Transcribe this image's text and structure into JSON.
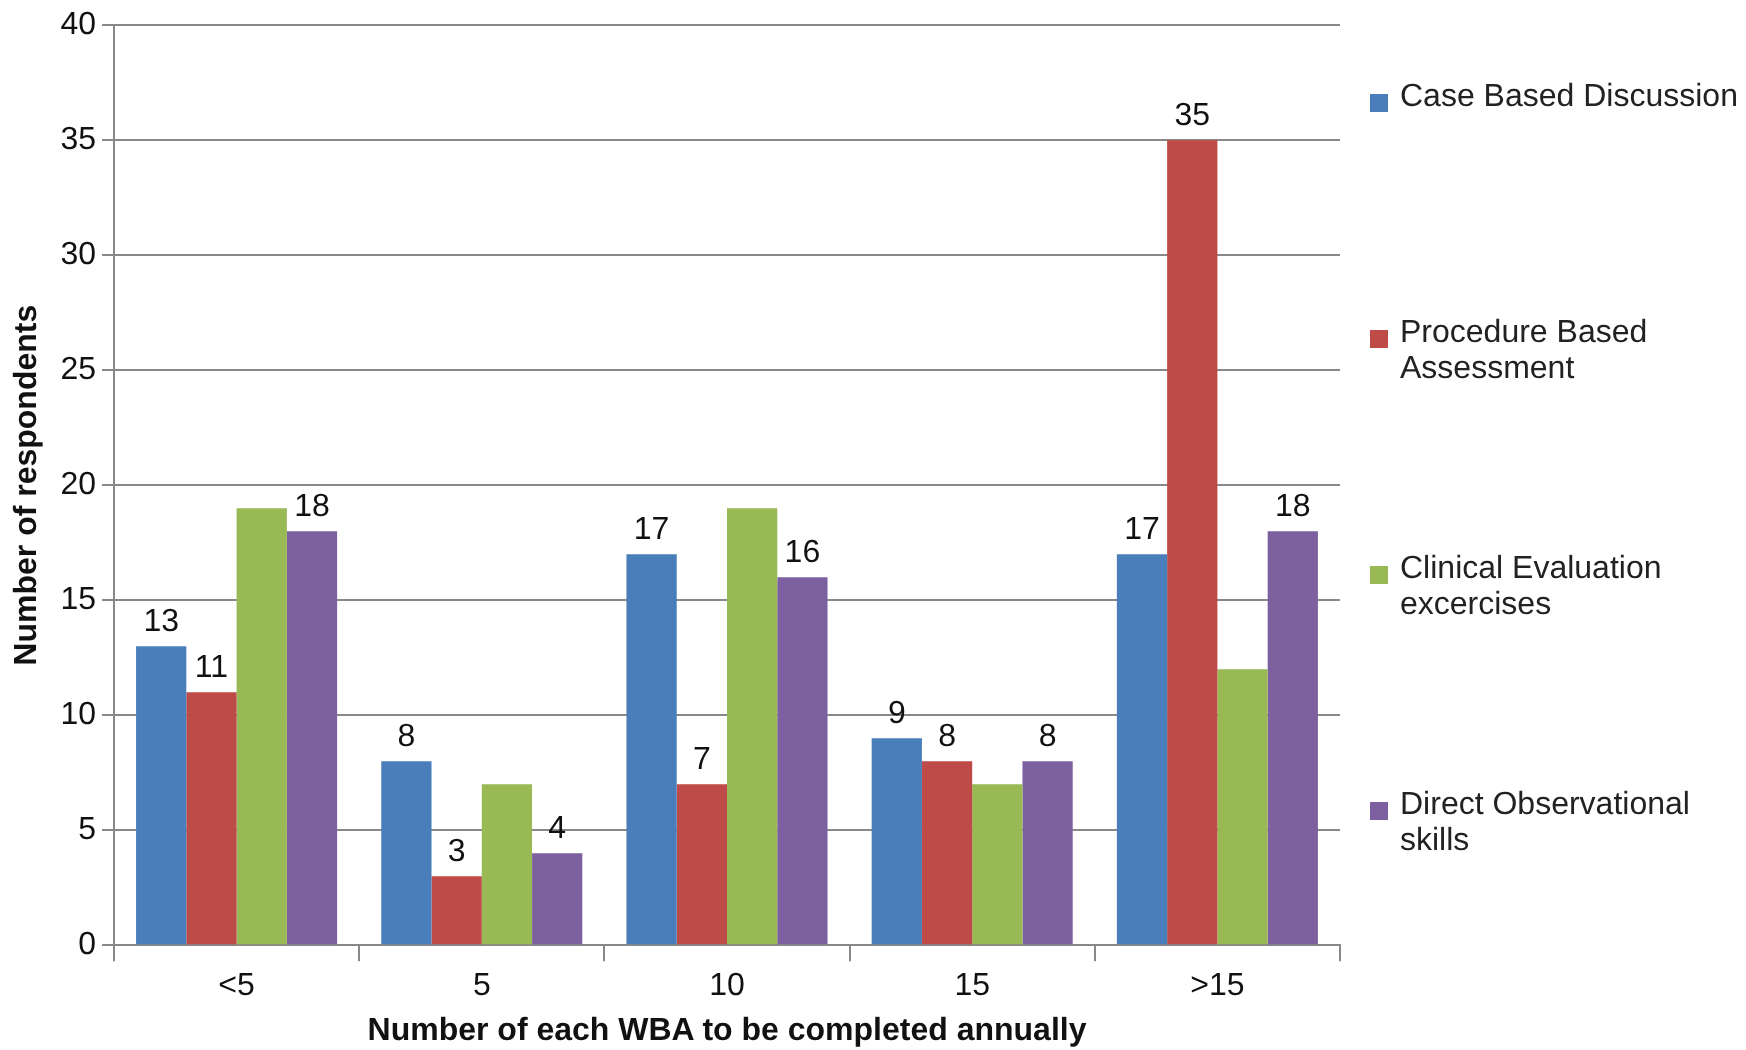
{
  "chart_data": {
    "type": "bar",
    "xlabel": "Number of each WBA to be completed annually",
    "ylabel": "Number of respondents",
    "categories": [
      "<5",
      "5",
      "10",
      "15",
      ">15"
    ],
    "series": [
      {
        "name": "Case Based Discussion",
        "color": "#4a7ebb",
        "values": [
          13,
          8,
          17,
          9,
          17
        ],
        "value_labels": [
          "13",
          "8",
          "17",
          "9",
          "17"
        ]
      },
      {
        "name": "Procedure Based Assessment",
        "color": "#be4b48",
        "values": [
          11,
          3,
          7,
          8,
          35
        ],
        "value_labels": [
          "11",
          "3",
          "7",
          "8",
          "35"
        ]
      },
      {
        "name": "Clinical Evaluation excercises",
        "color": "#98b954",
        "values": [
          19,
          7,
          19,
          7,
          12
        ]
      },
      {
        "name": "Direct Observational skills",
        "color": "#7d60a0",
        "values": [
          18,
          4,
          16,
          8,
          18
        ],
        "value_labels": [
          "18",
          "4",
          "16",
          "8",
          "18"
        ]
      }
    ],
    "ylim": [
      0,
      40
    ],
    "yticks": [
      0,
      5,
      10,
      15,
      20,
      25,
      30,
      35,
      40
    ],
    "grid": "y",
    "legend": "right"
  }
}
